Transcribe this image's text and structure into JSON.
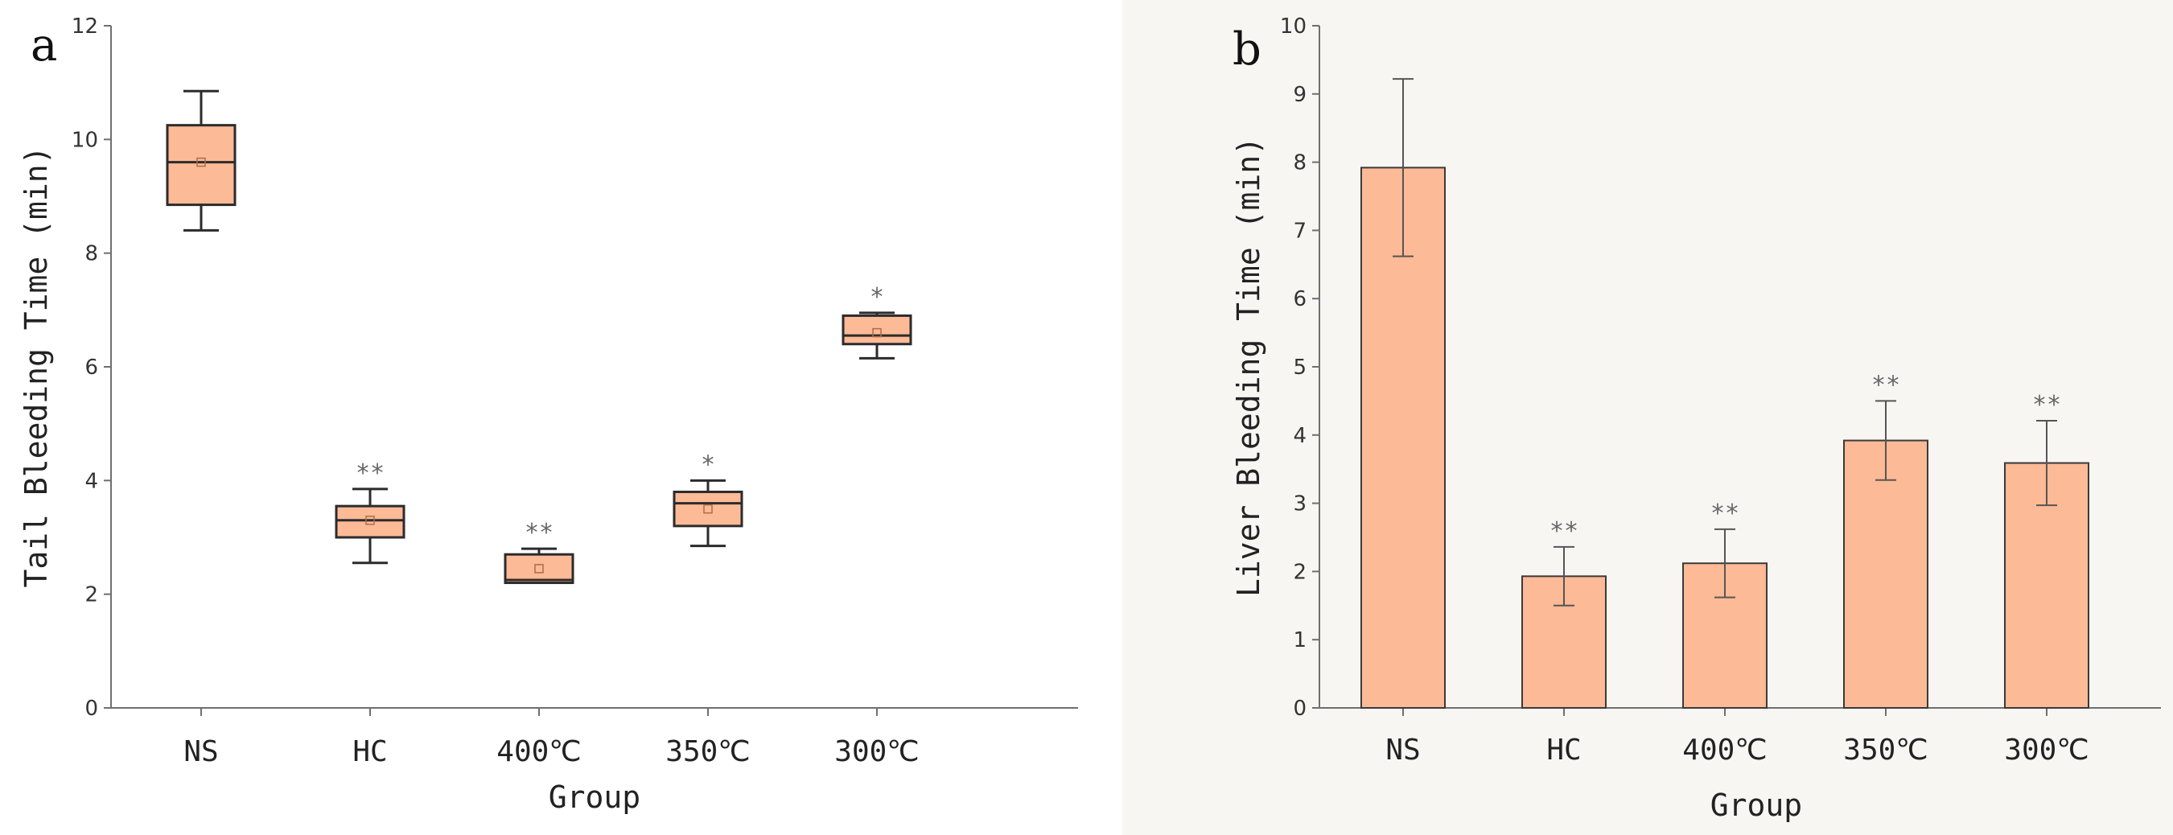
{
  "chart_data": [
    {
      "type": "box",
      "panel": "a",
      "xlabel": "Group",
      "ylabel": "Tail Bleeding Time (min)",
      "ylim": [
        0,
        12
      ],
      "yticks": [
        0,
        2,
        4,
        6,
        8,
        10,
        12
      ],
      "categories": [
        "NS",
        "HC",
        "400℃",
        "350℃",
        "300℃"
      ],
      "fill_color": "#fdba96",
      "boxes": [
        {
          "category": "NS",
          "min": 8.4,
          "q1": 8.85,
          "median": 9.6,
          "q3": 10.25,
          "max": 10.85,
          "mean": 9.6,
          "sig": ""
        },
        {
          "category": "HC",
          "min": 2.55,
          "q1": 3.0,
          "median": 3.3,
          "q3": 3.55,
          "max": 3.85,
          "mean": 3.3,
          "sig": "**"
        },
        {
          "category": "400℃",
          "min": 2.2,
          "q1": 2.2,
          "median": 2.25,
          "q3": 2.7,
          "max": 2.8,
          "mean": 2.45,
          "sig": "**"
        },
        {
          "category": "350℃",
          "min": 2.85,
          "q1": 3.2,
          "median": 3.6,
          "q3": 3.8,
          "max": 4.0,
          "mean": 3.5,
          "sig": "*"
        },
        {
          "category": "300℃",
          "min": 6.15,
          "q1": 6.4,
          "median": 6.55,
          "q3": 6.9,
          "max": 6.95,
          "mean": 6.6,
          "sig": "*"
        }
      ]
    },
    {
      "type": "bar",
      "panel": "b",
      "xlabel": "Group",
      "ylabel": "Liver Bleeding Time (min)",
      "ylim": [
        0,
        10
      ],
      "yticks": [
        0,
        1,
        2,
        3,
        4,
        5,
        6,
        7,
        8,
        9,
        10
      ],
      "categories": [
        "NS",
        "HC",
        "400℃",
        "350℃",
        "300℃"
      ],
      "fill_color": "#fdba96",
      "values": [
        7.92,
        1.93,
        2.12,
        3.92,
        3.59
      ],
      "errors": [
        1.3,
        0.43,
        0.5,
        0.58,
        0.62
      ],
      "sig": [
        "",
        "**",
        "**",
        "**",
        "**"
      ]
    }
  ]
}
